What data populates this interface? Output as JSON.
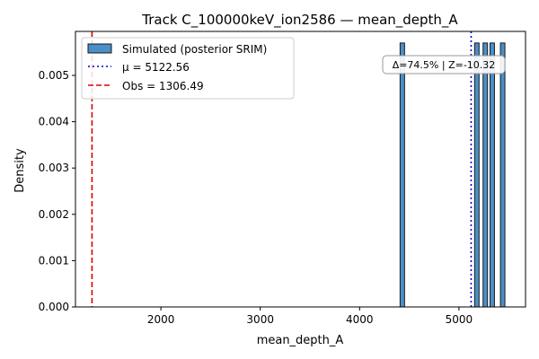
{
  "chart_data": {
    "type": "bar",
    "title": "Track C_100000keV_ion2586 — mean_depth_A",
    "xlabel": "mean_depth_A",
    "ylabel": "Density",
    "xlim": [
      1140,
      5670
    ],
    "ylim": [
      0,
      0.00595
    ],
    "xticks": [
      2000,
      3000,
      4000,
      5000
    ],
    "yticks": [
      0.0,
      0.001,
      0.002,
      0.003,
      0.004,
      0.005
    ],
    "ytick_labels": [
      "0.000",
      "0.001",
      "0.002",
      "0.003",
      "0.004",
      "0.005"
    ],
    "grid": false,
    "legend_position": "top-left",
    "bin_width": 45,
    "series": [
      {
        "name": "Simulated (posterior SRIM)",
        "color": "#4a8fc7",
        "bars": [
          {
            "x": 4430,
            "density": 0.0057
          },
          {
            "x": 5180,
            "density": 0.0057
          },
          {
            "x": 5265,
            "density": 0.0057
          },
          {
            "x": 5335,
            "density": 0.0057
          },
          {
            "x": 5440,
            "density": 0.0057
          }
        ]
      }
    ],
    "lines": [
      {
        "name": "μ = 5122.56",
        "value": 5122.56,
        "color": "#0000cc",
        "style": "dotted"
      },
      {
        "name": "Obs = 1306.49",
        "value": 1306.49,
        "color": "#dd0000",
        "style": "dashed"
      }
    ],
    "annotation": "Δ=74.5% | Z=-10.32"
  }
}
